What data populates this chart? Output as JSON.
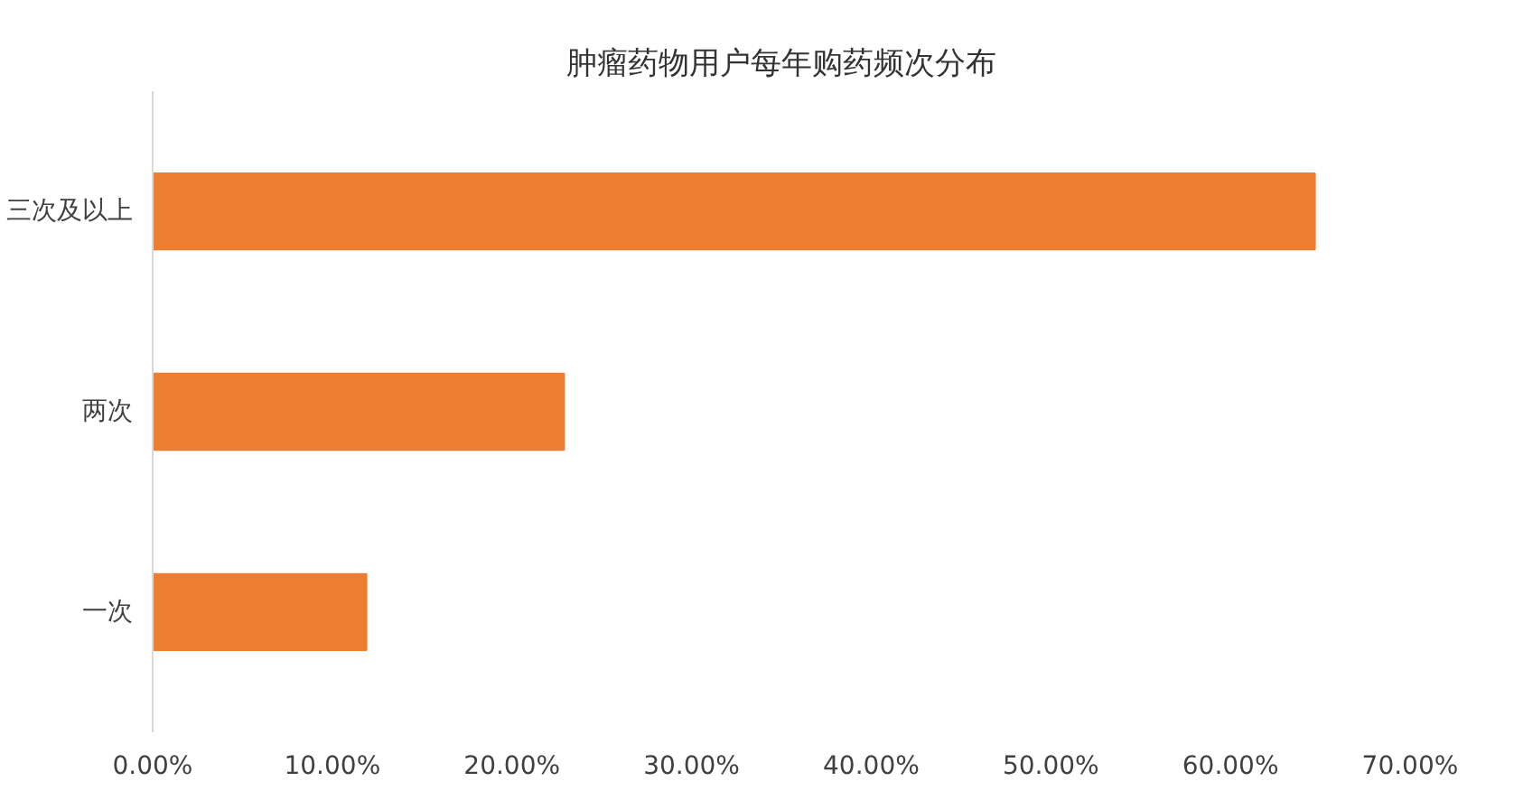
{
  "chart_data": {
    "type": "bar",
    "orientation": "horizontal",
    "title": "肿瘤药物用户每年购药频次分布",
    "categories": [
      "三次及以上",
      "两次",
      "一次"
    ],
    "values": [
      64.7,
      22.9,
      11.9
    ],
    "color": "#ed7d31",
    "xlim": [
      0,
      70
    ],
    "xticks": [
      {
        "value": 0,
        "label": "0.00%"
      },
      {
        "value": 10,
        "label": "10.00%"
      },
      {
        "value": 20,
        "label": "20.00%"
      },
      {
        "value": 30,
        "label": "30.00%"
      },
      {
        "value": 40,
        "label": "40.00%"
      },
      {
        "value": 50,
        "label": "50.00%"
      },
      {
        "value": 60,
        "label": "60.00%"
      },
      {
        "value": 70,
        "label": "70.00%"
      }
    ],
    "grid": false
  }
}
